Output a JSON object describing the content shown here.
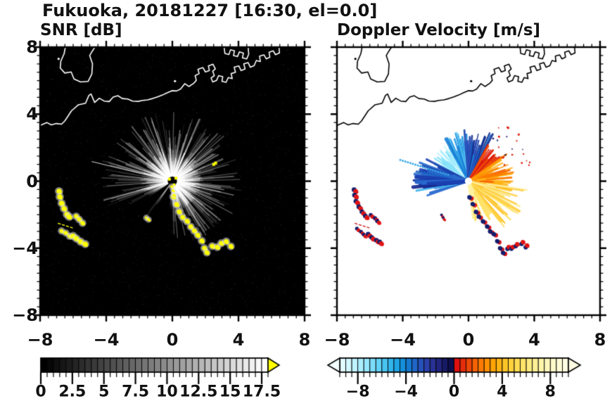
{
  "title": "Fukuoka, 20181227 [16:30, el=0.0]",
  "panels": {
    "snr": {
      "subtitle": "SNR [dB]"
    },
    "doppler": {
      "subtitle": "Doppler Velocity [m/s]"
    }
  },
  "axes": {
    "x_tick_values": [
      -8,
      -4,
      0,
      4,
      8
    ],
    "x_tick_labels": [
      "−8",
      "−4",
      "0",
      "4",
      "8"
    ],
    "y_tick_values": [
      8,
      4,
      0,
      -4,
      -8
    ],
    "y_tick_labels": [
      "8",
      "4",
      "0",
      "−4",
      "−8"
    ],
    "xlim": [
      -8,
      8
    ],
    "ylim": [
      -8,
      8
    ],
    "major_step": 4,
    "minor_step": 0.5
  },
  "basemap": {
    "coast_width": 1.6,
    "coastlines": [
      [
        [
          -6.45,
          8.1
        ],
        [
          -6.55,
          7.6
        ],
        [
          -6.75,
          7.15
        ],
        [
          -6.78,
          6.75
        ],
        [
          -6.5,
          6.45
        ],
        [
          -6.12,
          6.52
        ],
        [
          -5.95,
          6.1
        ],
        [
          -5.55,
          5.92
        ],
        [
          -5.1,
          5.95
        ],
        [
          -4.87,
          6.4
        ],
        [
          -4.83,
          7.0
        ],
        [
          -5.0,
          7.5
        ],
        [
          -4.85,
          7.75
        ],
        [
          -4.62,
          8.1
        ]
      ],
      [
        [
          -8.1,
          3.28
        ],
        [
          -7.6,
          3.5
        ],
        [
          -7.32,
          3.36
        ],
        [
          -7.02,
          3.44
        ],
        [
          -6.7,
          3.4
        ],
        [
          -6.5,
          3.6
        ],
        [
          -6.1,
          4.2
        ],
        [
          -5.68,
          4.56
        ],
        [
          -5.25,
          4.65
        ],
        [
          -5.05,
          5.12
        ],
        [
          -4.92,
          5.2
        ],
        [
          -4.7,
          4.7
        ],
        [
          -4.42,
          4.95
        ],
        [
          -4.12,
          4.78
        ],
        [
          -3.82,
          4.75
        ],
        [
          -3.58,
          5.02
        ],
        [
          -3.3,
          5.1
        ],
        [
          -3.02,
          4.93
        ],
        [
          -2.7,
          4.9
        ],
        [
          -2.4,
          4.78
        ],
        [
          -2.08,
          4.76
        ],
        [
          -1.8,
          4.82
        ],
        [
          -1.5,
          4.85
        ],
        [
          -1.2,
          4.93
        ],
        [
          -0.9,
          5.03
        ],
        [
          -0.6,
          5.14
        ],
        [
          -0.3,
          5.28
        ],
        [
          -0.02,
          5.4
        ],
        [
          0.25,
          5.38
        ],
        [
          0.5,
          5.5
        ],
        [
          0.75,
          5.82
        ],
        [
          1.0,
          5.65
        ],
        [
          1.28,
          5.83
        ],
        [
          1.45,
          6.02
        ],
        [
          1.38,
          6.3
        ],
        [
          1.62,
          6.42
        ],
        [
          1.55,
          6.68
        ],
        [
          1.85,
          6.78
        ],
        [
          2.0,
          6.52
        ],
        [
          2.24,
          6.6
        ],
        [
          2.18,
          6.88
        ],
        [
          2.46,
          6.98
        ],
        [
          2.6,
          6.7
        ],
        [
          2.44,
          6.56
        ],
        [
          2.54,
          6.3
        ],
        [
          2.34,
          6.16
        ],
        [
          2.44,
          5.92
        ],
        [
          2.68,
          6.02
        ],
        [
          2.8,
          6.3
        ],
        [
          3.05,
          6.24
        ],
        [
          3.0,
          5.96
        ],
        [
          3.25,
          5.9
        ],
        [
          3.38,
          6.18
        ],
        [
          3.62,
          6.12
        ],
        [
          3.56,
          6.42
        ],
        [
          3.82,
          6.5
        ],
        [
          3.74,
          6.8
        ],
        [
          4.02,
          6.88
        ],
        [
          4.16,
          6.6
        ],
        [
          4.4,
          6.7
        ],
        [
          4.32,
          7.0
        ],
        [
          4.58,
          7.08
        ],
        [
          4.72,
          6.8
        ],
        [
          4.95,
          6.9
        ],
        [
          5.08,
          7.2
        ],
        [
          5.32,
          7.14
        ],
        [
          5.28,
          7.46
        ],
        [
          5.54,
          7.54
        ],
        [
          5.68,
          7.3
        ],
        [
          5.9,
          7.4
        ],
        [
          5.85,
          7.7
        ],
        [
          6.1,
          7.78
        ],
        [
          6.24,
          7.55
        ],
        [
          6.48,
          7.65
        ],
        [
          6.44,
          8.1
        ]
      ],
      [
        [
          3.12,
          8.1
        ],
        [
          3.18,
          7.62
        ],
        [
          3.42,
          7.56
        ],
        [
          3.52,
          7.84
        ],
        [
          3.76,
          7.78
        ],
        [
          3.7,
          7.5
        ],
        [
          3.94,
          7.44
        ],
        [
          4.06,
          7.72
        ],
        [
          4.3,
          7.64
        ],
        [
          4.24,
          7.36
        ],
        [
          4.5,
          7.3
        ],
        [
          4.62,
          7.58
        ],
        [
          4.58,
          8.1
        ]
      ]
    ],
    "islets": [
      [
        -6.88,
        7.3
      ],
      [
        0.16,
        5.97
      ]
    ]
  },
  "clutter_chains": [
    {
      "pts": [
        [
          0.08,
          -0.95
        ],
        [
          0.25,
          -1.4
        ],
        [
          0.45,
          -1.85
        ],
        [
          0.66,
          -2.12
        ],
        [
          0.9,
          -2.4
        ],
        [
          1.12,
          -2.68
        ],
        [
          1.34,
          -2.98
        ],
        [
          1.55,
          -3.2
        ],
        [
          1.78,
          -3.58
        ],
        [
          1.94,
          -3.98
        ],
        [
          2.08,
          -4.28
        ]
      ],
      "style": "blob",
      "size": 0.14,
      "d_main": "#141f6e",
      "d_accent": "#e01515",
      "d_off": [
        0.13,
        -0.07
      ]
    },
    {
      "pts": [
        [
          2.42,
          -3.9
        ],
        [
          2.68,
          -3.94
        ],
        [
          2.98,
          -3.74
        ],
        [
          3.28,
          -3.6
        ],
        [
          3.52,
          -3.88
        ]
      ],
      "style": "blob",
      "size": 0.14,
      "d_main": "#e01515",
      "d_accent": "#141f6e",
      "d_off": [
        -0.08,
        -0.11
      ]
    },
    {
      "pts": [
        [
          -0.03,
          -0.3
        ],
        [
          0.02,
          -0.55
        ],
        [
          0.07,
          -0.8
        ]
      ],
      "style": "blob",
      "size": 0.08,
      "snr_only": true
    },
    {
      "pts": [
        [
          -6.88,
          -0.6
        ],
        [
          -6.82,
          -0.95
        ],
        [
          -6.72,
          -1.3
        ],
        [
          -6.56,
          -1.66
        ],
        [
          -6.38,
          -1.96
        ],
        [
          -6.2,
          -2.14
        ]
      ],
      "style": "blob",
      "size": 0.15,
      "d_main": "#e01515",
      "d_accent": "#141f6e",
      "d_off": [
        -0.1,
        0.1
      ]
    },
    {
      "pts": [
        [
          -5.86,
          -2.1
        ],
        [
          -5.62,
          -2.3
        ],
        [
          -5.46,
          -2.5
        ]
      ],
      "style": "blob",
      "size": 0.13,
      "d_main": "#e01515",
      "d_accent": "#141f6e",
      "d_off": [
        -0.1,
        0.1
      ]
    },
    {
      "pts": [
        [
          -6.72,
          -2.95
        ],
        [
          -6.47,
          -3.1
        ],
        [
          -6.24,
          -3.26
        ]
      ],
      "style": "blob",
      "size": 0.12,
      "d_main": "#e01515",
      "d_accent": "#141f6e",
      "d_off": [
        -0.1,
        0.1
      ]
    },
    {
      "pts": [
        [
          -6.02,
          -3.24
        ],
        [
          -5.78,
          -3.44
        ],
        [
          -5.54,
          -3.6
        ],
        [
          -5.3,
          -3.72
        ]
      ],
      "style": "blob",
      "size": 0.15,
      "d_main": "#e01515",
      "d_accent": "#141f6e",
      "d_off": [
        -0.1,
        0.1
      ]
    },
    {
      "pts": [
        [
          -1.6,
          -2.15
        ],
        [
          -1.44,
          -2.3
        ]
      ],
      "style": "blob",
      "size": 0.09,
      "d_main": "#e01515",
      "d_accent": "#141f6e",
      "d_off": [
        -0.06,
        0.1
      ]
    },
    {
      "pts": [
        [
          -6.9,
          -2.52
        ],
        [
          -6.0,
          -2.8
        ]
      ],
      "style": "line",
      "d_main": "#d02020"
    }
  ],
  "chart_data": [
    {
      "type": "radar_ppi",
      "title": "SNR [dB]",
      "units": "dB",
      "xlim": [
        -8,
        8
      ],
      "ylim": [
        -8,
        8
      ],
      "background": "#000000",
      "coast_color": "#ffffff",
      "center": [
        0,
        0
      ],
      "ray_sectors": [
        {
          "az": [
            -75,
            100
          ],
          "n": 150,
          "r": [
            0.6,
            4.2
          ],
          "alpha": [
            0.07,
            0.45
          ],
          "w": [
            1,
            2
          ]
        },
        {
          "az": [
            100,
            180
          ],
          "n": 85,
          "r": [
            0.6,
            3.8
          ],
          "alpha": [
            0.06,
            0.42
          ],
          "w": [
            1,
            2
          ]
        },
        {
          "az": [
            188,
            243
          ],
          "n": 22,
          "r": [
            0.6,
            3.0
          ],
          "alpha": [
            0.04,
            0.15
          ],
          "w": [
            1,
            2
          ]
        },
        {
          "az": [
            243,
            303
          ],
          "n": 45,
          "r": [
            0.8,
            4.4
          ],
          "alpha": [
            0.05,
            0.28
          ],
          "w": [
            1,
            2
          ]
        }
      ],
      "thin_rays": [
        {
          "az": 283.5,
          "r": 5.0,
          "alpha": 0.85
        },
        {
          "az": 276,
          "r": 3.7,
          "alpha": 0.5
        },
        {
          "az": 254.5,
          "r": 4.3,
          "alpha": 0.5
        },
        {
          "az": 118,
          "r": 4.1,
          "alpha": 0.5
        }
      ],
      "shadow_wedges": [
        {
          "az": [
            186,
            212
          ],
          "r": 3.4
        },
        {
          "az": [
            218,
            236
          ],
          "r": 2.9
        }
      ],
      "noise": {
        "n": 2600,
        "alpha": 0.13
      },
      "specks": [],
      "yellow_specks": [
        [
          2.5,
          1.0
        ],
        [
          2.62,
          1.08
        ],
        [
          -0.18,
          0.12
        ],
        [
          0.1,
          -0.22
        ],
        [
          0.22,
          0.18
        ]
      ],
      "center_style": {
        "disk_color": "#000000",
        "disk_r": 0.28,
        "glow_r": 1.7
      },
      "clutter_style": {
        "fill": "#ffff00",
        "halo": "rgba(225,225,225,0.55)"
      },
      "colorbar": {
        "min": 0,
        "max": 18,
        "segments": 36,
        "ramp": [
          "#000000",
          "#ffffff"
        ],
        "overflow_color": "#ffff00",
        "tick_step": 0.5,
        "label_values": [
          0,
          2.5,
          5,
          7.5,
          10,
          12.5,
          15,
          17.5
        ],
        "labels": [
          "0",
          "2.5",
          "5",
          "7.5",
          "10",
          "12.5",
          "15",
          "17.5"
        ]
      }
    },
    {
      "type": "radar_ppi",
      "title": "Doppler Velocity [m/s]",
      "units": "m/s",
      "xlim": [
        -8,
        8
      ],
      "ylim": [
        -8,
        8
      ],
      "background": "#ffffff",
      "coast_color": "#000000",
      "center": [
        0,
        0
      ],
      "ray_sectors": [
        {
          "az": [
            -62,
            -30
          ],
          "n": 50,
          "r": [
            0.4,
            2.6
          ],
          "w": [
            1.5,
            3
          ],
          "colors": [
            "#8ce4fa",
            "#aeeffe",
            "#5fd0f5",
            "#c8f5ff"
          ]
        },
        {
          "az": [
            -30,
            -5
          ],
          "n": 40,
          "r": [
            0.4,
            3.0
          ],
          "w": [
            1.5,
            3
          ],
          "colors": [
            "#2f9fe6",
            "#57c3f1",
            "#1b7fd6"
          ]
        },
        {
          "az": [
            -5,
            28
          ],
          "n": 45,
          "r": [
            0.5,
            3.2
          ],
          "w": [
            1.5,
            3
          ],
          "colors": [
            "#1b63ca",
            "#2a4eb8",
            "#1e86da",
            "#16308f"
          ]
        },
        {
          "az": [
            28,
            55
          ],
          "n": 40,
          "r": [
            0.4,
            2.5
          ],
          "w": [
            1.5,
            3
          ],
          "colors": [
            "#e32310",
            "#ef5207",
            "#d8180e"
          ]
        },
        {
          "az": [
            55,
            98
          ],
          "n": 55,
          "r": [
            0.4,
            2.8
          ],
          "w": [
            1.5,
            3
          ],
          "colors": [
            "#fb7c02",
            "#ff9d07",
            "#f9660a",
            "#ffb515"
          ]
        },
        {
          "az": [
            98,
            142
          ],
          "n": 60,
          "r": [
            0.5,
            3.6
          ],
          "w": [
            1.5,
            3
          ],
          "colors": [
            "#ffd246",
            "#ffe372",
            "#ffef9e",
            "#ffc22a"
          ]
        },
        {
          "az": [
            142,
            174
          ],
          "n": 35,
          "r": [
            0.4,
            2.6
          ],
          "w": [
            1.5,
            3
          ],
          "colors": [
            "#fff3a6",
            "#fffad0",
            "#ffe05e"
          ]
        },
        {
          "az": [
            250,
            297
          ],
          "n": 45,
          "r": [
            0.7,
            3.3
          ],
          "w": [
            1.8,
            3.2
          ],
          "colors": [
            "#1b3fae",
            "#15278b",
            "#2e6fd0",
            "#45b5ef"
          ]
        },
        {
          "az": [
            255,
            285
          ],
          "n": 20,
          "r": [
            1.8,
            3.4
          ],
          "w": [
            3,
            6
          ],
          "colors": [
            "#1b3fae",
            "#16288e",
            "#2a6ace"
          ]
        }
      ],
      "specks": [
        {
          "az": [
            25,
            80
          ],
          "r": [
            2.3,
            4.2
          ],
          "n": 16,
          "color": "#dd1d0f",
          "size": [
            1.5,
            3
          ]
        },
        {
          "az": [
            30,
            62
          ],
          "r": [
            2.6,
            3.8
          ],
          "n": 6,
          "color": "#1a2472",
          "size": [
            1.5,
            2.5
          ]
        }
      ],
      "dotted_rays": [
        {
          "az": 287,
          "r0": 1.3,
          "r1": 4.5,
          "color": "#35a8e8"
        },
        {
          "az": 280.5,
          "r0": 1.1,
          "r1": 3.2,
          "color": "#1a6cc8"
        }
      ],
      "center_style": {
        "disk_color": "#ffffff",
        "disk_r": 0.22
      },
      "colorbar": {
        "min": -9.5,
        "max": 9.5,
        "colors": [
          "#e2fbff",
          "#d2f7ff",
          "#c0f3ff",
          "#abeeff",
          "#94e7fe",
          "#7cddfb",
          "#62d2f7",
          "#48c4f2",
          "#30b5ec",
          "#1da5e5",
          "#148fdb",
          "#1579d1",
          "#1f66c6",
          "#2752b9",
          "#2b41a9",
          "#293295",
          "#22257f",
          "#171a65",
          "#0d104e",
          "#df1010",
          "#e62c0b",
          "#ed4707",
          "#f56204",
          "#fb7a02",
          "#ff9000",
          "#ffa406",
          "#ffb514",
          "#ffc427",
          "#ffd13c",
          "#ffdc52",
          "#ffe569",
          "#ffec80",
          "#fff195",
          "#fff5a9",
          "#fff8bb",
          "#fffaca",
          "#fffcd7",
          "#fffde3"
        ],
        "left_overflow": "#f2feff",
        "right_overflow": "#fffce4",
        "tick_step": 0.5,
        "label_values": [
          -8,
          -4,
          0,
          4,
          8
        ],
        "labels": [
          "−8",
          "−4",
          "0",
          "4",
          "8"
        ]
      }
    }
  ]
}
